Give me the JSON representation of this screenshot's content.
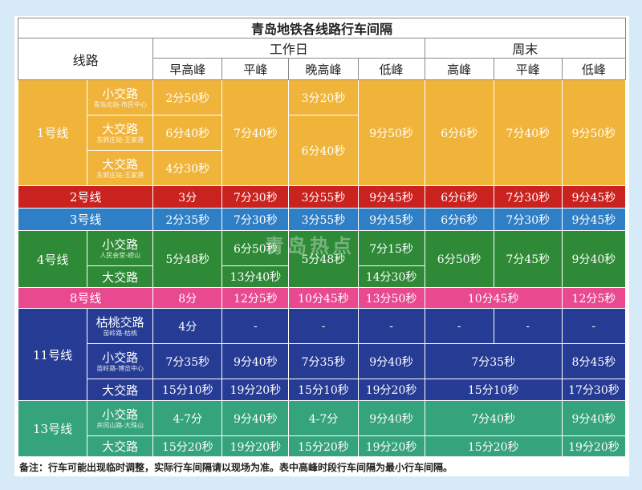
{
  "title": "青岛地铁各线路行车间隔",
  "header": {
    "line_col": "线路",
    "weekday": "工作日",
    "weekend": "周末",
    "weekday_cols": [
      "早高峰",
      "平峰",
      "晚高峰",
      "低峰"
    ],
    "weekend_cols": [
      "高峰",
      "平峰",
      "低峰"
    ]
  },
  "lines": {
    "l1": {
      "name": "1号线",
      "r1": {
        "route": "小交路",
        "sub": "青岛北站-市民中心"
      },
      "r2": {
        "route": "大交路",
        "sub": "东郭庄站-王家港"
      },
      "r3": {
        "route": "大交路",
        "sub": "东郭庄站-王家港"
      },
      "v": {
        "m1": "2分50秒",
        "m2": "6分40秒",
        "m3": "4分30秒",
        "flat": "7分40秒",
        "e1": "3分20秒",
        "e2": "6分40秒",
        "low": "9分50秒",
        "wp": "6分6秒",
        "wf": "7分40秒",
        "wl": "9分50秒"
      }
    },
    "l2": {
      "name": "2号线",
      "v": [
        "3分",
        "7分30秒",
        "3分55秒",
        "9分45秒",
        "6分6秒",
        "7分30秒",
        "9分45秒"
      ]
    },
    "l3": {
      "name": "3号线",
      "v": [
        "2分35秒",
        "7分30秒",
        "3分55秒",
        "9分45秒",
        "6分6秒",
        "7分30秒",
        "9分45秒"
      ]
    },
    "l4": {
      "name": "4号线",
      "r1": {
        "route": "小交路",
        "sub": "人民会堂-崂山"
      },
      "r2": {
        "route": "大交路"
      },
      "v": {
        "morning": "5分48秒",
        "f1": "6分50秒",
        "f2": "13分40秒",
        "evening": "5分48秒",
        "l1": "7分15秒",
        "l2": "14分30秒",
        "wp": "6分50秒",
        "wf": "7分45秒",
        "wl": "9分40秒"
      }
    },
    "l8": {
      "name": "8号线",
      "v": [
        "8分",
        "12分5秒",
        "10分45秒",
        "13分50秒",
        "10分45秒",
        "12分5秒"
      ]
    },
    "l11": {
      "name": "11号线",
      "r1": {
        "route": "枯桃交路",
        "sub": "苗岭路-枯桃"
      },
      "r2": {
        "route": "小交路",
        "sub": "苗岭路-博览中心"
      },
      "r3": {
        "route": "大交路"
      },
      "v1": [
        "4分",
        "-",
        "-",
        "-",
        "-",
        "-",
        "-"
      ],
      "v2": [
        "7分35秒",
        "9分40秒",
        "7分35秒",
        "9分40秒",
        "7分35秒",
        "8分45秒"
      ],
      "v3": [
        "15分10秒",
        "19分20秒",
        "15分10秒",
        "19分20秒",
        "15分10秒",
        "17分30秒"
      ]
    },
    "l13": {
      "name": "13号线",
      "r1": {
        "route": "小交路",
        "sub": "井冈山路-大珠山"
      },
      "r2": {
        "route": "大交路"
      },
      "v1": [
        "4-7分",
        "9分40秒",
        "4-7分",
        "9分40秒",
        "7分40秒",
        "9分40秒"
      ],
      "v2": [
        "15分20秒",
        "19分20秒",
        "15分20秒",
        "19分20秒",
        "15分20秒",
        "19分20秒"
      ]
    }
  },
  "watermark": "青岛热点",
  "note": "备注：行车可能出现临时调整，实际行车间隔请以现场为准。表中高峰时段行车间隔为最小行车间隔。"
}
